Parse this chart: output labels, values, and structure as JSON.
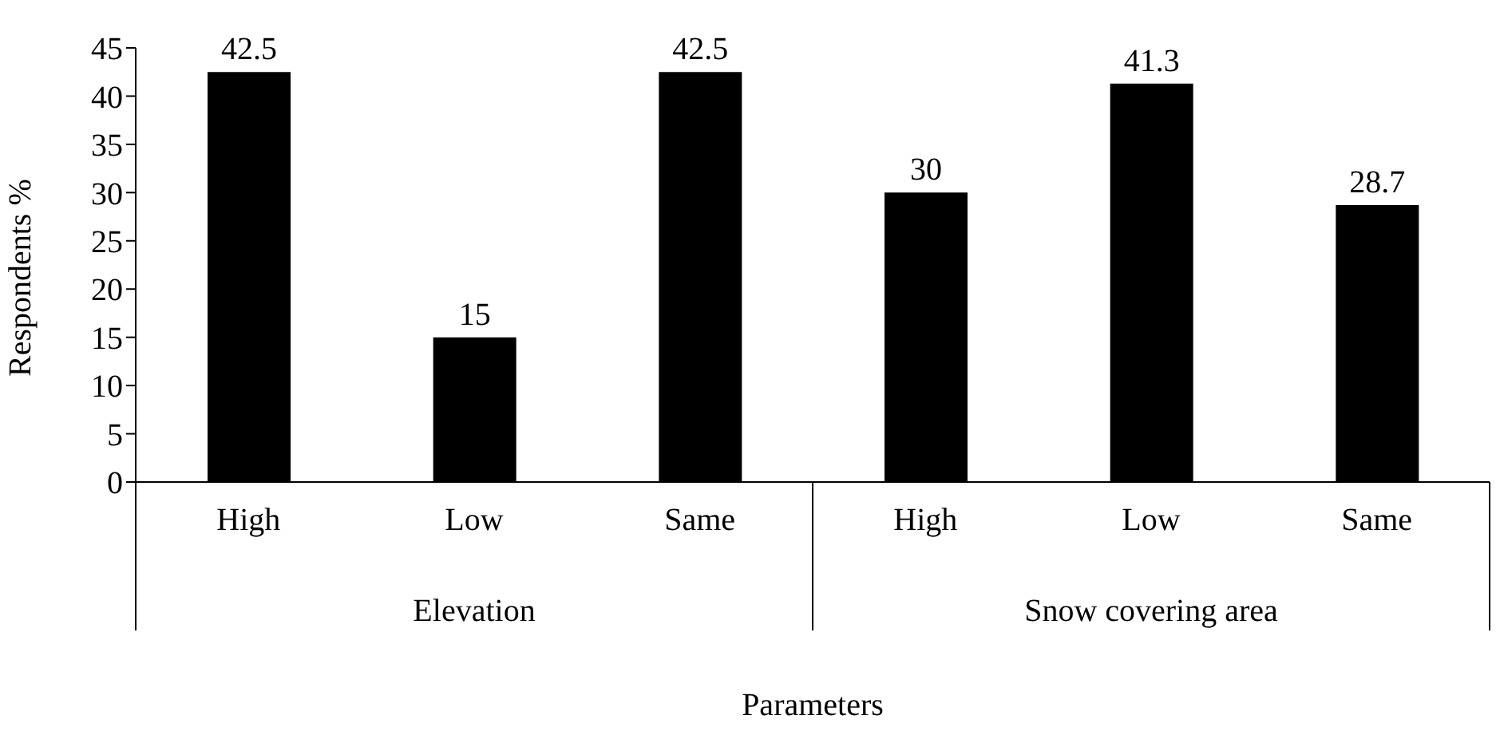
{
  "chart_data": {
    "type": "bar",
    "ylabel": "Respondents %",
    "xlabel": "Parameters",
    "categories": [
      "High",
      "Low",
      "Same",
      "High",
      "Low",
      "Same"
    ],
    "annotations": [
      "Elevation",
      "Snow covering area"
    ],
    "values": [
      42.5,
      15,
      42.5,
      30,
      41.3,
      28.7
    ],
    "color": "#000000",
    "data_labels": true,
    "ylim": [
      0,
      45
    ],
    "yticks": [
      0,
      5,
      10,
      15,
      20,
      25,
      30,
      35,
      40,
      45
    ]
  }
}
